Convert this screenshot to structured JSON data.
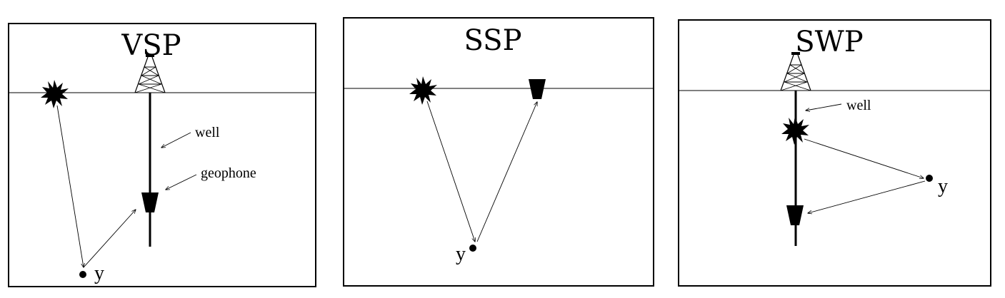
{
  "panels": [
    {
      "title": "VSP",
      "labels": {
        "well": "well",
        "geophone": "geophone",
        "point": "y"
      }
    },
    {
      "title": "SSP",
      "labels": {
        "point": "y"
      }
    },
    {
      "title": "SWP",
      "labels": {
        "well": "well",
        "point": "y"
      }
    }
  ],
  "icons": {
    "source": "starburst-source-icon",
    "receiver": "geophone-receiver-icon",
    "rig": "drilling-rig-icon"
  },
  "colors": {
    "stroke": "#000000",
    "background": "#ffffff"
  }
}
